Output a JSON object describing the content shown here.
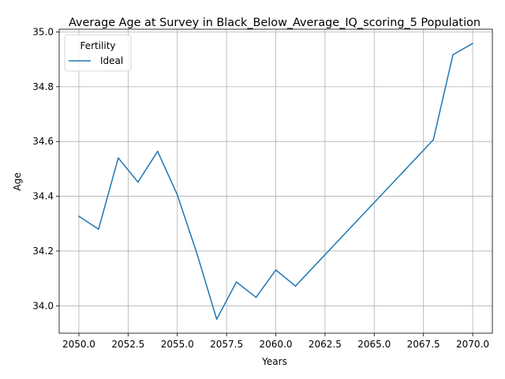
{
  "chart_data": {
    "type": "line",
    "title": "Average Age at Survey in Black_Below_Average_IQ_scoring_5 Population",
    "xlabel": "Years",
    "ylabel": "Age",
    "xlim": [
      2049,
      2071
    ],
    "ylim": [
      33.9,
      35.01
    ],
    "x_ticks": [
      2050.0,
      2052.5,
      2055.0,
      2057.5,
      2060.0,
      2062.5,
      2065.0,
      2067.5,
      2070.0
    ],
    "x_tick_labels": [
      "2050.0",
      "2052.5",
      "2055.0",
      "2057.5",
      "2060.0",
      "2062.5",
      "2065.0",
      "2067.5",
      "2070.0"
    ],
    "y_ticks": [
      34.0,
      34.2,
      34.4,
      34.6,
      34.8,
      35.0
    ],
    "y_tick_labels": [
      "34.0",
      "34.2",
      "34.4",
      "34.6",
      "34.8",
      "35.0"
    ],
    "grid": true,
    "legend": {
      "title": "Fertility",
      "placement": "top-left"
    },
    "series": [
      {
        "name": "Ideal",
        "color": "#1f77b4",
        "x": [
          2050,
          2051,
          2052,
          2053,
          2054,
          2055,
          2056,
          2057,
          2058,
          2059,
          2060,
          2061,
          2068,
          2069,
          2070
        ],
        "values": [
          34.327,
          34.28,
          34.54,
          34.452,
          34.564,
          34.405,
          34.19,
          33.951,
          34.087,
          34.031,
          34.131,
          34.072,
          34.606,
          34.917,
          34.958
        ]
      }
    ]
  }
}
